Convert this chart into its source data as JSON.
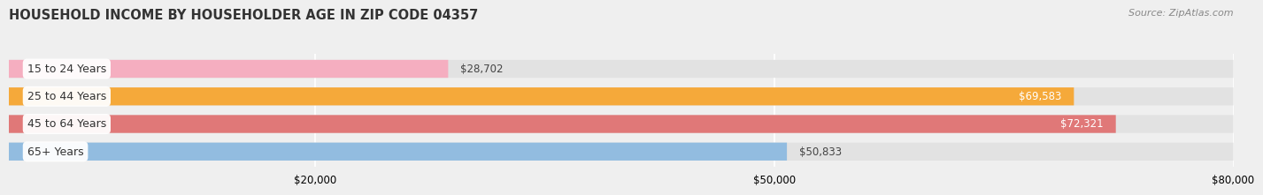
{
  "title": "HOUSEHOLD INCOME BY HOUSEHOLDER AGE IN ZIP CODE 04357",
  "source": "Source: ZipAtlas.com",
  "categories": [
    "15 to 24 Years",
    "25 to 44 Years",
    "45 to 64 Years",
    "65+ Years"
  ],
  "values": [
    28702,
    69583,
    72321,
    50833
  ],
  "bar_colors": [
    "#f5aec0",
    "#f5a93a",
    "#e07878",
    "#92bce0"
  ],
  "bar_labels": [
    "$28,702",
    "$69,583",
    "$72,321",
    "$50,833"
  ],
  "xlim": [
    0,
    80000
  ],
  "xticks": [
    20000,
    50000,
    80000
  ],
  "xticklabels": [
    "$20,000",
    "$50,000",
    "$80,000"
  ],
  "background_color": "#efefef",
  "bar_bg_color": "#e2e2e2",
  "title_fontsize": 10.5,
  "source_fontsize": 8,
  "label_fontsize": 8.5,
  "category_fontsize": 9
}
